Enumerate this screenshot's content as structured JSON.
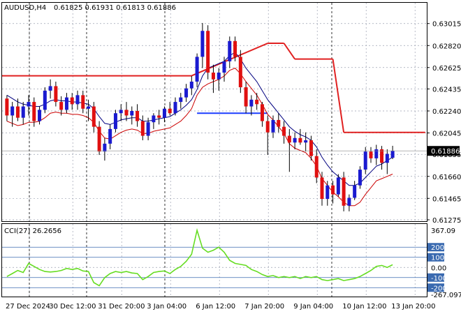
{
  "header": {
    "symbol_label": "AUDUSD,H4",
    "ohlc_label": "0.61825 0.61931 0.61813 0.61886"
  },
  "price_panel": {
    "current_price_label": "0.61886",
    "y_range": [
      0.61275,
      0.631
    ],
    "y_ticks": [
      "0.63015",
      "0.62820",
      "0.62625",
      "0.62435",
      "0.62240",
      "0.62045",
      "0.61855",
      "0.61660",
      "0.61465",
      "0.61275"
    ]
  },
  "cci_panel": {
    "label": "CCI(27) 26.2656",
    "y_range": [
      -267.097,
      367.09
    ],
    "y_ticks": [
      "367.09",
      "200",
      "100",
      "0.00",
      "-100",
      "-200",
      "-267.097"
    ]
  },
  "x_axis": {
    "tick_labels": [
      "27 Dec 2024",
      "30 Dec 12:00",
      "31 Dec 20:00",
      "3 Jan 04:00",
      "6 Jan 12:00",
      "7 Jan 20:00",
      "9 Jan 04:00",
      "10 Jan 12:00",
      "13 Jan 20:00"
    ]
  },
  "colors": {
    "bull": "#1a1ad0",
    "bear": "#e01010",
    "fast_ma": "#000080",
    "slow_ma": "#cc0000",
    "step_line": "#e02020",
    "support_line": "#1a3cff",
    "cci_line": "#66dd22",
    "grid": "#9aa0b0",
    "session_sep": "#000000"
  },
  "chart_data": {
    "type": "candlestick",
    "series_name": "AUDUSD",
    "timeframe": "H4",
    "candles": [
      [
        0.6235,
        0.6238,
        0.6215,
        0.622
      ],
      [
        0.622,
        0.6232,
        0.621,
        0.6228
      ],
      [
        0.6228,
        0.6235,
        0.6215,
        0.6218
      ],
      [
        0.6218,
        0.6232,
        0.6212,
        0.6228
      ],
      [
        0.6228,
        0.6238,
        0.622,
        0.6232
      ],
      [
        0.6232,
        0.6236,
        0.621,
        0.6215
      ],
      [
        0.6215,
        0.6228,
        0.6212,
        0.6225
      ],
      [
        0.6225,
        0.6245,
        0.6222,
        0.6242
      ],
      [
        0.6242,
        0.6252,
        0.6235,
        0.6246
      ],
      [
        0.6246,
        0.625,
        0.6228,
        0.6232
      ],
      [
        0.6232,
        0.6237,
        0.622,
        0.6225
      ],
      [
        0.6225,
        0.624,
        0.6222,
        0.6236
      ],
      [
        0.6236,
        0.624,
        0.6225,
        0.623
      ],
      [
        0.623,
        0.6242,
        0.6225,
        0.6238
      ],
      [
        0.6238,
        0.6242,
        0.6222,
        0.6226
      ],
      [
        0.6226,
        0.6234,
        0.6215,
        0.6228
      ],
      [
        0.6228,
        0.6232,
        0.6205,
        0.621
      ],
      [
        0.621,
        0.6215,
        0.6185,
        0.6188
      ],
      [
        0.6188,
        0.62,
        0.618,
        0.6195
      ],
      [
        0.6195,
        0.6212,
        0.619,
        0.6208
      ],
      [
        0.6208,
        0.6225,
        0.6205,
        0.6222
      ],
      [
        0.6222,
        0.623,
        0.6215,
        0.6225
      ],
      [
        0.6225,
        0.6232,
        0.6215,
        0.622
      ],
      [
        0.622,
        0.6228,
        0.6212,
        0.6224
      ],
      [
        0.6224,
        0.623,
        0.621,
        0.6215
      ],
      [
        0.6215,
        0.622,
        0.6198,
        0.6202
      ],
      [
        0.6202,
        0.6218,
        0.6198,
        0.6214
      ],
      [
        0.6214,
        0.6222,
        0.6208,
        0.622
      ],
      [
        0.622,
        0.6225,
        0.6212,
        0.6218
      ],
      [
        0.6218,
        0.6228,
        0.6214,
        0.6226
      ],
      [
        0.6226,
        0.6232,
        0.622,
        0.6222
      ],
      [
        0.6222,
        0.6236,
        0.622,
        0.6232
      ],
      [
        0.6232,
        0.624,
        0.6226,
        0.6236
      ],
      [
        0.6236,
        0.6248,
        0.6232,
        0.6244
      ],
      [
        0.6244,
        0.6255,
        0.6238,
        0.625
      ],
      [
        0.625,
        0.6275,
        0.6245,
        0.6272
      ],
      [
        0.6272,
        0.6302,
        0.6262,
        0.6295
      ],
      [
        0.6295,
        0.63,
        0.6252,
        0.6258
      ],
      [
        0.6258,
        0.6265,
        0.624,
        0.6252
      ],
      [
        0.6252,
        0.6262,
        0.6242,
        0.6258
      ],
      [
        0.6258,
        0.6272,
        0.625,
        0.6268
      ],
      [
        0.6268,
        0.629,
        0.6262,
        0.6286
      ],
      [
        0.6286,
        0.629,
        0.6268,
        0.6272
      ],
      [
        0.6272,
        0.6278,
        0.624,
        0.6245
      ],
      [
        0.6245,
        0.625,
        0.6222,
        0.6228
      ],
      [
        0.6228,
        0.6238,
        0.622,
        0.6234
      ],
      [
        0.6234,
        0.624,
        0.6225,
        0.623
      ],
      [
        0.623,
        0.6232,
        0.621,
        0.6215
      ],
      [
        0.6215,
        0.622,
        0.6185,
        0.6205
      ],
      [
        0.6205,
        0.622,
        0.62,
        0.6216
      ],
      [
        0.6216,
        0.6222,
        0.6205,
        0.621
      ],
      [
        0.621,
        0.6215,
        0.6195,
        0.6202
      ],
      [
        0.6202,
        0.6208,
        0.617,
        0.6196
      ],
      [
        0.6196,
        0.6205,
        0.619,
        0.62
      ],
      [
        0.62,
        0.6208,
        0.6194,
        0.6196
      ],
      [
        0.6196,
        0.6205,
        0.6188,
        0.6198
      ],
      [
        0.6198,
        0.6202,
        0.618,
        0.6184
      ],
      [
        0.6184,
        0.619,
        0.616,
        0.6165
      ],
      [
        0.6165,
        0.617,
        0.614,
        0.6146
      ],
      [
        0.6146,
        0.6162,
        0.614,
        0.6158
      ],
      [
        0.6158,
        0.6162,
        0.6142,
        0.615
      ],
      [
        0.615,
        0.6168,
        0.6148,
        0.6165
      ],
      [
        0.6165,
        0.617,
        0.6135,
        0.614
      ],
      [
        0.614,
        0.615,
        0.6135,
        0.6147
      ],
      [
        0.6147,
        0.6162,
        0.6145,
        0.6158
      ],
      [
        0.6158,
        0.6175,
        0.6155,
        0.6172
      ],
      [
        0.6172,
        0.6192,
        0.6168,
        0.6188
      ],
      [
        0.6188,
        0.6192,
        0.6178,
        0.6182
      ],
      [
        0.6182,
        0.6194,
        0.6176,
        0.619
      ],
      [
        0.619,
        0.6193,
        0.6172,
        0.6178
      ],
      [
        0.6178,
        0.619,
        0.6168,
        0.6186
      ],
      [
        0.61825,
        0.61931,
        0.61813,
        0.61886
      ]
    ],
    "fast_ma": [
      0.6238,
      0.6235,
      0.6232,
      0.623,
      0.6229,
      0.6228,
      0.6228,
      0.623,
      0.6233,
      0.6234,
      0.6233,
      0.6233,
      0.6232,
      0.6232,
      0.6231,
      0.623,
      0.6226,
      0.6219,
      0.6213,
      0.6212,
      0.6214,
      0.6216,
      0.6217,
      0.6218,
      0.6218,
      0.6215,
      0.6215,
      0.6216,
      0.6217,
      0.6218,
      0.6219,
      0.6222,
      0.6225,
      0.6229,
      0.6234,
      0.6243,
      0.6255,
      0.6262,
      0.6264,
      0.6266,
      0.6268,
      0.6273,
      0.6276,
      0.627,
      0.6262,
      0.6256,
      0.625,
      0.6242,
      0.6234,
      0.6228,
      0.6222,
      0.6216,
      0.621,
      0.6206,
      0.6203,
      0.6201,
      0.6198,
      0.6192,
      0.6183,
      0.6176,
      0.617,
      0.6166,
      0.6162,
      0.6158,
      0.6158,
      0.616,
      0.6165,
      0.617,
      0.6175,
      0.6177,
      0.618,
      0.6183
    ],
    "slow_ma": [
      0.6215,
      0.6213,
      0.6211,
      0.6212,
      0.6214,
      0.6214,
      0.6215,
      0.6218,
      0.6222,
      0.6223,
      0.6222,
      0.6222,
      0.6221,
      0.6221,
      0.622,
      0.6218,
      0.6214,
      0.6206,
      0.62,
      0.6199,
      0.6202,
      0.6205,
      0.6207,
      0.6208,
      0.6207,
      0.6204,
      0.6204,
      0.6206,
      0.6207,
      0.6208,
      0.6209,
      0.6212,
      0.6215,
      0.622,
      0.6226,
      0.6238,
      0.6245,
      0.6248,
      0.625,
      0.6252,
      0.6255,
      0.626,
      0.6262,
      0.6257,
      0.625,
      0.6244,
      0.6238,
      0.623,
      0.6221,
      0.6216,
      0.621,
      0.6204,
      0.6195,
      0.6191,
      0.6189,
      0.6187,
      0.6182,
      0.6175,
      0.6164,
      0.6158,
      0.6152,
      0.6148,
      0.6143,
      0.614,
      0.614,
      0.6143,
      0.615,
      0.6156,
      0.6162,
      0.6164,
      0.6166,
      0.6168
    ],
    "step_line": [
      [
        0,
        0.62552
      ],
      [
        34,
        0.62552
      ],
      [
        34,
        0.62552
      ],
      [
        48,
        0.6284
      ],
      [
        51,
        0.6284
      ],
      [
        53,
        0.627
      ],
      [
        60,
        0.627
      ],
      [
        62,
        0.6205
      ],
      [
        77,
        0.6205
      ]
    ],
    "support_line": {
      "from_index": 35,
      "to_index": 48,
      "value": 0.6222
    },
    "cci": [
      -90,
      -60,
      -30,
      -50,
      40,
      10,
      -20,
      -40,
      -45,
      -40,
      -30,
      -10,
      -20,
      -10,
      -35,
      -40,
      -150,
      -180,
      -100,
      -60,
      -40,
      -50,
      -40,
      -55,
      -60,
      -120,
      -90,
      -50,
      -40,
      -35,
      -60,
      -20,
      10,
      60,
      130,
      367,
      190,
      150,
      170,
      200,
      150,
      70,
      40,
      30,
      20,
      -20,
      -40,
      -70,
      -90,
      -80,
      -100,
      -90,
      -100,
      -90,
      -110,
      -90,
      -100,
      -90,
      -120,
      -130,
      -120,
      -110,
      -130,
      -120,
      -110,
      -90,
      -60,
      -30,
      10,
      20,
      0,
      26.27
    ]
  }
}
